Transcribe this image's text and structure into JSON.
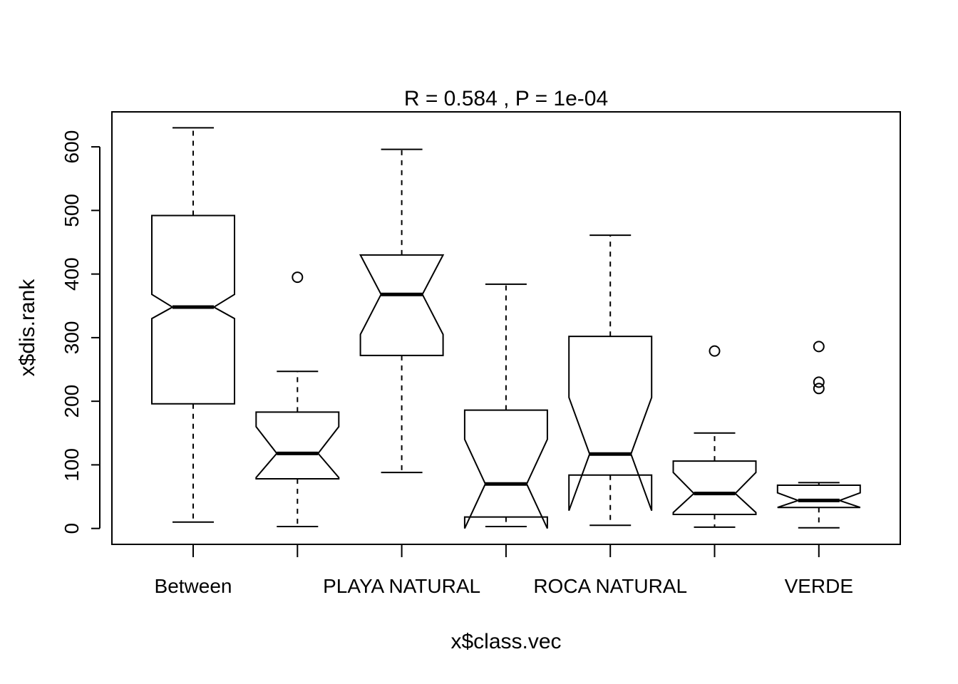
{
  "chart_data": {
    "type": "boxplot",
    "title": "R =  0.584 ,  P =  1e-04",
    "xlabel": "x$class.vec",
    "ylabel": "x$dis.rank",
    "ylim": [
      -25,
      655
    ],
    "yticks": [
      0,
      100,
      200,
      300,
      400,
      500,
      600
    ],
    "notched": true,
    "categories": [
      "Between",
      "",
      "PLAYA NATURAL",
      "",
      "ROCA NATURAL",
      "",
      "VERDE"
    ],
    "boxes": [
      {
        "category": "Between",
        "whisker_low": 10,
        "q1": 196,
        "median": 348,
        "q3": 492,
        "whisker_high": 630,
        "notch_low": 330,
        "notch_high": 368,
        "outliers": []
      },
      {
        "category": "",
        "whisker_low": 3,
        "q1": 78,
        "median": 118,
        "q3": 183,
        "whisker_high": 247,
        "notch_low": 80,
        "notch_high": 160,
        "outliers": [
          395
        ]
      },
      {
        "category": "PLAYA NATURAL",
        "whisker_low": 88,
        "q1": 272,
        "median": 368,
        "q3": 430,
        "whisker_high": 596,
        "notch_low": 305,
        "notch_high": 430,
        "outliers": []
      },
      {
        "category": "",
        "whisker_low": 3,
        "q1": 18,
        "median": 70,
        "q3": 186,
        "whisker_high": 384,
        "notch_low": 0,
        "notch_high": 140,
        "outliers": []
      },
      {
        "category": "ROCA NATURAL",
        "whisker_low": 5,
        "q1": 84,
        "median": 117,
        "q3": 302,
        "whisker_high": 461,
        "notch_low": 28,
        "notch_high": 206,
        "outliers": []
      },
      {
        "category": "",
        "whisker_low": 2,
        "q1": 22,
        "median": 55,
        "q3": 106,
        "whisker_high": 150,
        "notch_low": 25,
        "notch_high": 88,
        "outliers": [
          279
        ]
      },
      {
        "category": "VERDE",
        "whisker_low": 1,
        "q1": 33,
        "median": 44,
        "q3": 68,
        "whisker_high": 72,
        "notch_low": 33,
        "notch_high": 56,
        "outliers": [
          286,
          230,
          220
        ]
      }
    ]
  }
}
